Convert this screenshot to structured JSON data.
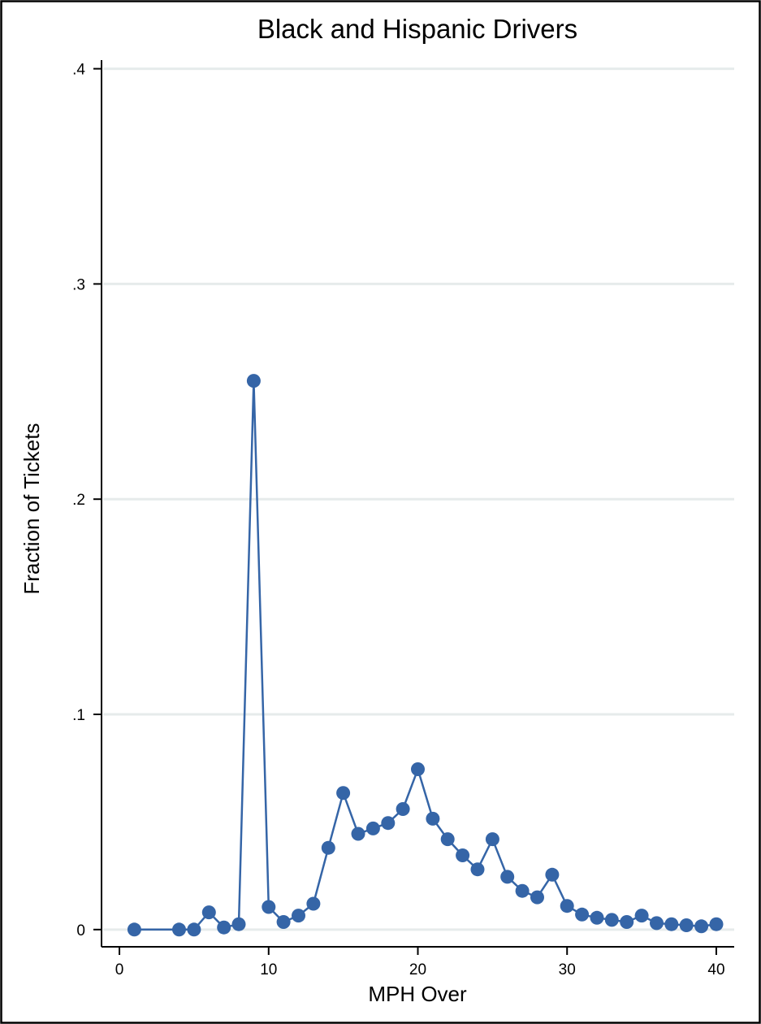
{
  "chart_data": {
    "type": "line",
    "title": "Black and Hispanic Drivers",
    "xlabel": "MPH Over",
    "ylabel": "Fraction of Tickets",
    "xlim": [
      -1.2,
      41.2
    ],
    "ylim": [
      -0.008,
      0.404
    ],
    "x_ticks": [
      0,
      10,
      20,
      30,
      40
    ],
    "x_tick_labels": [
      "0",
      "10",
      "20",
      "30",
      "40"
    ],
    "y_ticks": [
      0,
      0.1,
      0.2,
      0.3,
      0.4
    ],
    "y_tick_labels": [
      "0",
      ".1",
      ".2",
      ".3",
      ".4"
    ],
    "grid": "horizontal",
    "legend": "none",
    "series": [
      {
        "color": "#3565a7",
        "marker": "circle",
        "x": [
          1,
          4,
          5,
          6,
          7,
          8,
          9,
          10,
          11,
          12,
          13,
          14,
          15,
          16,
          17,
          18,
          19,
          20,
          21,
          22,
          23,
          24,
          25,
          26,
          27,
          28,
          29,
          30,
          31,
          32,
          33,
          34,
          35,
          36,
          37,
          38,
          39,
          40
        ],
        "y": [
          0.0,
          0.0,
          0.0,
          0.008,
          0.001,
          0.0025,
          0.255,
          0.0105,
          0.0035,
          0.0065,
          0.012,
          0.038,
          0.0635,
          0.0445,
          0.047,
          0.0495,
          0.056,
          0.0745,
          0.0515,
          0.042,
          0.0345,
          0.028,
          0.042,
          0.0245,
          0.018,
          0.015,
          0.0255,
          0.011,
          0.007,
          0.0055,
          0.0045,
          0.0035,
          0.0065,
          0.003,
          0.0025,
          0.002,
          0.0015,
          0.0025
        ]
      }
    ]
  }
}
